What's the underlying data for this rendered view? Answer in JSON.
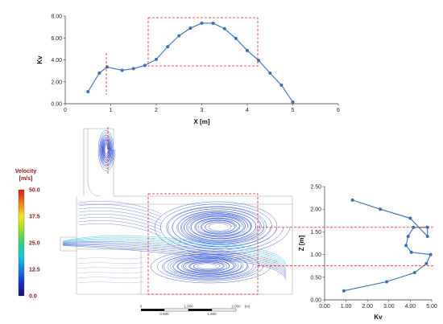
{
  "chart_data": [
    {
      "type": "line",
      "xlabel": "X [m]",
      "ylabel": "Kv",
      "xlim": [
        0,
        6
      ],
      "ylim": [
        0,
        8
      ],
      "xticks": [
        "0",
        "1",
        "2",
        "3",
        "4",
        "5",
        "6"
      ],
      "yticks": [
        "0.00",
        "2.00",
        "4.00",
        "6.00",
        "8.00"
      ],
      "series": [
        {
          "color": "#3a6fb5",
          "x": [
            0.5,
            0.75,
            0.92,
            1.25,
            1.5,
            1.75,
            2.0,
            2.25,
            2.5,
            2.75,
            3.0,
            3.25,
            3.5,
            3.75,
            4.0,
            4.25,
            4.5,
            4.75,
            5.0
          ],
          "y": [
            1.1,
            2.8,
            3.35,
            3.05,
            3.2,
            3.5,
            4.05,
            5.2,
            6.2,
            6.9,
            7.35,
            7.35,
            6.85,
            5.95,
            4.85,
            3.95,
            2.8,
            1.7,
            0.15
          ]
        }
      ]
    },
    {
      "type": "line",
      "xlabel": "Kv",
      "ylabel": "Z [m]",
      "xlim": [
        0,
        5
      ],
      "ylim": [
        0,
        2.5
      ],
      "xticks": [
        "0.00",
        "1.00",
        "2.00",
        "3.00",
        "4.00",
        "5.00"
      ],
      "yticks": [
        "0.00",
        "0.50",
        "1.00",
        "1.50",
        "2.00",
        "2.50"
      ],
      "series": [
        {
          "color": "#3a6fb5",
          "x": [
            0.9,
            2.9,
            4.2,
            4.75,
            4.95,
            4.05,
            3.8,
            3.9,
            4.15,
            4.8,
            4.8,
            4.0,
            2.6,
            1.3
          ],
          "y": [
            0.2,
            0.4,
            0.6,
            0.8,
            1.0,
            1.05,
            1.2,
            1.4,
            1.6,
            1.6,
            1.4,
            1.8,
            2.0,
            2.2
          ]
        }
      ]
    }
  ],
  "legend": {
    "title_line1": "Velocity",
    "title_line2": "[m/s]",
    "ticks": [
      "50.0",
      "37.5",
      "25.0",
      "12.5",
      "0.0"
    ],
    "colors": [
      "#d7191c",
      "#f07a1a",
      "#f5e51b",
      "#9ddd2a",
      "#2fd07a",
      "#18c8d8",
      "#1a7fe0",
      "#1a2fd0",
      "#1a1070"
    ]
  },
  "scale_bar": {
    "top_labels": [
      "0",
      "1.000",
      "2.000",
      "(m)"
    ],
    "bottom_labels": [
      "0.500",
      "1.500"
    ]
  },
  "colors": {
    "marker": "#3a6fb5",
    "highlight": "#e0242a",
    "streamline": "#2e4fd0",
    "outline": "#9a9a9a"
  }
}
